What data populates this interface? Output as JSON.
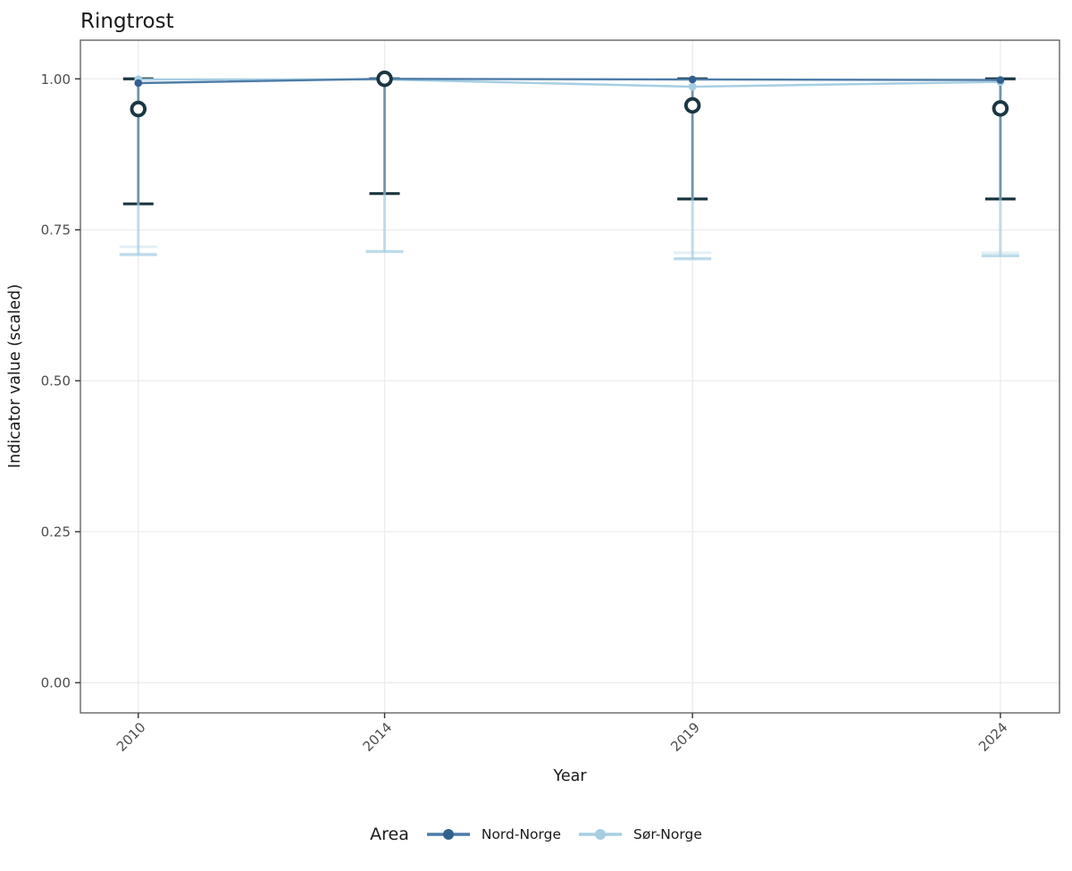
{
  "chart_data": {
    "type": "line",
    "title": "Ringtrost",
    "xlabel": "Year",
    "ylabel": "Indicator value (scaled)",
    "grid": "major-on",
    "legend": {
      "title": "Area",
      "position": "bottom"
    },
    "xlim": [
      2009.06,
      2024.96
    ],
    "ylim": [
      -0.05,
      1.064
    ],
    "x_ticks": {
      "values": [
        2010,
        2014,
        2019,
        2024
      ],
      "labels": [
        "2010",
        "2014",
        "2019",
        "2024"
      ]
    },
    "y_ticks": {
      "values": [
        0.0,
        0.25,
        0.5,
        0.75,
        1.0
      ],
      "labels": [
        "0.00",
        "0.25",
        "0.50",
        "0.75",
        "1.00"
      ]
    },
    "categories_x": [
      2010,
      2014,
      2019,
      2024
    ],
    "series": [
      {
        "name": "Nord-Norge",
        "line_color": "#4d7ba8",
        "point_color": "#33608f",
        "y": [
          0.993,
          1.0,
          0.999,
          0.998
        ],
        "errorbar": {
          "color": "#1b3642",
          "upper": [
            1.0,
            1.0,
            1.0,
            1.0
          ],
          "lower": [
            0.793,
            0.81,
            0.801,
            0.801
          ]
        },
        "open_circles": {
          "color": "#1b3642",
          "fill": "#ffffff",
          "y": [
            0.95,
            1.0,
            0.956,
            0.951
          ]
        }
      },
      {
        "name": "Sør-Norge",
        "line_color": "#a6cee3",
        "point_color": "#a6cee3",
        "y": [
          0.999,
          0.999,
          0.987,
          0.995
        ],
        "errorbar": {
          "color": "#a6cee3",
          "upper": [
            0.999,
            0.999,
            0.987,
            0.995
          ],
          "lower": [
            0.709,
            0.714,
            0.702,
            0.707
          ],
          "lower_faint": [
            0.722,
            null,
            0.712,
            0.712
          ]
        }
      }
    ],
    "colors": {
      "panel_border": "#595959",
      "gridline": "#ebebeb",
      "tick_mark": "#333333",
      "tick_label": "#4d4d4d",
      "text": "#1a1a1a"
    }
  }
}
